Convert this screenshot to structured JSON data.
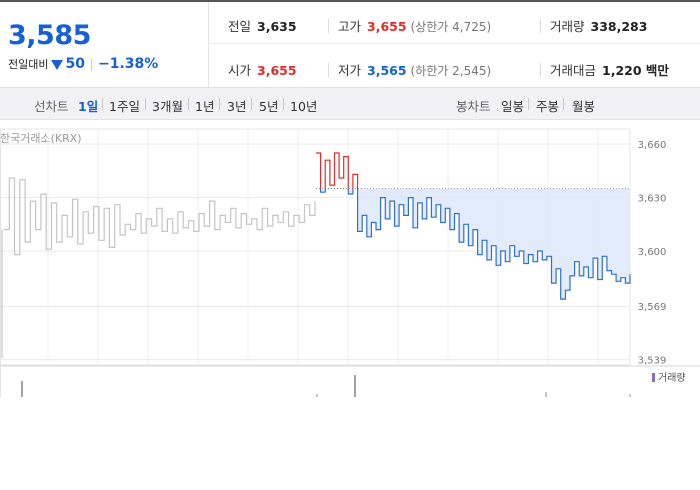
{
  "price": {
    "current": "3,585",
    "diff_label": "전일대비",
    "change": "50",
    "change_pct": "−1.38%",
    "down_color": "#1560d4",
    "up_color": "#e32b2b"
  },
  "stats": {
    "prev_close": {
      "label": "전일",
      "value": "3,635"
    },
    "high": {
      "label": "고가",
      "value": "3,655",
      "limit": "(상한가 4,725)"
    },
    "volume": {
      "label": "거래량",
      "value": "338,283"
    },
    "open": {
      "label": "시가",
      "value": "3,655"
    },
    "low": {
      "label": "저가",
      "value": "3,565",
      "limit": "(하한가 2,545)"
    },
    "amount": {
      "label": "거래대금",
      "value": "1,220 백만"
    }
  },
  "toolbar": {
    "line_label": "선차트",
    "line_periods": [
      "1일",
      "1주일",
      "3개월",
      "1년",
      "3년",
      "5년",
      "10년"
    ],
    "selected_period": "1일",
    "candle_label": "봉차트",
    "candle_periods": [
      "일봉",
      "주봉",
      "월봉"
    ]
  },
  "chart_data": {
    "type": "line",
    "source_label": "한국거래소(KRX)",
    "y_ticks": [
      3660,
      3630,
      3600,
      3569,
      3539
    ],
    "y_tick_labels": [
      "3,660",
      "3,630",
      "3,600",
      "3,569",
      "3,539"
    ],
    "ylim": [
      3536,
      3664
    ],
    "prev_close": 3635,
    "volume_legend": "거래량",
    "series": [
      {
        "session": "previous day",
        "color": "#c4c4c4",
        "values": [
          3612,
          3641,
          3598,
          3640,
          3605,
          3628,
          3612,
          3632,
          3601,
          3627,
          3605,
          3620,
          3608,
          3629,
          3604,
          3622,
          3610,
          3625,
          3606,
          3624,
          3602,
          3626,
          3609,
          3615,
          3612,
          3621,
          3610,
          3618,
          3614,
          3624,
          3611,
          3618,
          3610,
          3622,
          3613,
          3617,
          3611,
          3621,
          3614,
          3628,
          3612,
          3620,
          3616,
          3624,
          3613,
          3621,
          3615,
          3618,
          3612,
          3624,
          3614,
          3620,
          3616,
          3622,
          3614,
          3620,
          3616,
          3626,
          3620,
          3628
        ]
      },
      {
        "session": "today",
        "color": "#2e6fd2",
        "values": [
          3655,
          3633,
          3651,
          3637,
          3655,
          3641,
          3653,
          3632,
          3643,
          3611,
          3620,
          3608,
          3616,
          3612,
          3630,
          3618,
          3628,
          3614,
          3626,
          3620,
          3630,
          3613,
          3627,
          3618,
          3630,
          3619,
          3626,
          3616,
          3624,
          3612,
          3621,
          3605,
          3615,
          3603,
          3612,
          3598,
          3606,
          3595,
          3603,
          3592,
          3600,
          3594,
          3603,
          3597,
          3600,
          3593,
          3598,
          3594,
          3600,
          3595,
          3597,
          3582,
          3590,
          3573,
          3578,
          3586,
          3594,
          3586,
          3591,
          3585,
          3596,
          3584,
          3597,
          3589,
          3587,
          3583,
          3585,
          3582,
          3587
        ]
      }
    ]
  }
}
